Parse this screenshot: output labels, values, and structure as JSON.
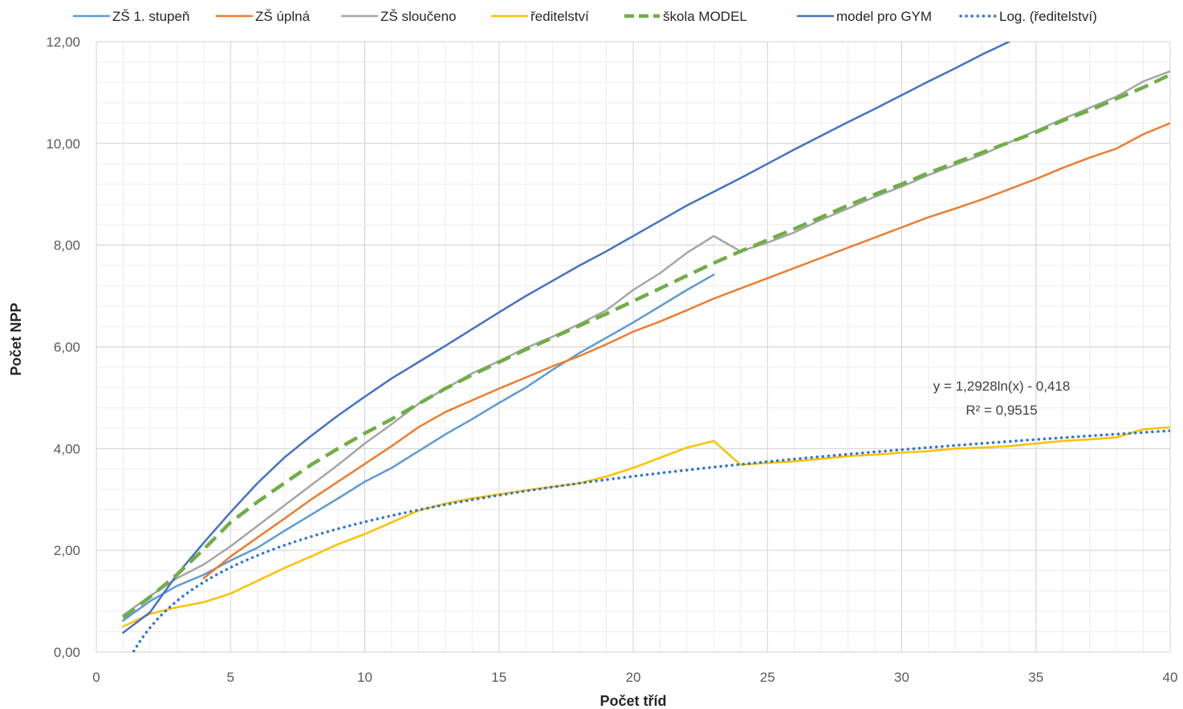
{
  "chart_data": {
    "type": "line",
    "xlabel": "Počet tříd",
    "ylabel": "Počet NPP",
    "xlim": [
      0,
      40
    ],
    "ylim": [
      0,
      12
    ],
    "x_ticks": [
      "0",
      "5",
      "10",
      "15",
      "20",
      "25",
      "30",
      "35",
      "40"
    ],
    "y_ticks": [
      "0,00",
      "2,00",
      "4,00",
      "6,00",
      "8,00",
      "10,00",
      "12,00"
    ],
    "grid": true,
    "legend_position": "top",
    "series": [
      {
        "name": "ZŠ 1. stupeň",
        "color": "#5B9BD5",
        "style": "solid",
        "x": [
          1,
          2,
          3,
          4,
          5,
          6,
          7,
          8,
          9,
          10,
          11,
          12,
          13,
          14,
          15,
          16,
          17,
          18,
          19,
          20,
          21,
          22,
          23
        ],
        "y": [
          0.62,
          1.0,
          1.3,
          1.52,
          1.8,
          2.05,
          2.38,
          2.7,
          3.02,
          3.35,
          3.62,
          3.95,
          4.28,
          4.58,
          4.9,
          5.2,
          5.55,
          5.88,
          6.18,
          6.48,
          6.8,
          7.12,
          7.42
        ]
      },
      {
        "name": "ZŠ úplná",
        "color": "#ED7D31",
        "style": "solid",
        "x": [
          4,
          5,
          6,
          7,
          8,
          9,
          10,
          11,
          12,
          13,
          14,
          15,
          16,
          17,
          18,
          19,
          20,
          21,
          22,
          23,
          24,
          25,
          26,
          27,
          28,
          29,
          30,
          31,
          32,
          33,
          34,
          35,
          36,
          37,
          38,
          39,
          40
        ],
        "y": [
          1.45,
          1.88,
          2.25,
          2.62,
          3.0,
          3.35,
          3.7,
          4.05,
          4.42,
          4.72,
          4.95,
          5.18,
          5.4,
          5.62,
          5.82,
          6.05,
          6.3,
          6.5,
          6.72,
          6.95,
          7.15,
          7.35,
          7.55,
          7.75,
          7.95,
          8.15,
          8.35,
          8.55,
          8.72,
          8.9,
          9.1,
          9.3,
          9.52,
          9.72,
          9.9,
          10.18,
          10.4
        ]
      },
      {
        "name": "ZŠ sloučeno",
        "color": "#A5A5A5",
        "style": "solid",
        "x": [
          1,
          2,
          3,
          4,
          5,
          6,
          7,
          8,
          9,
          10,
          11,
          12,
          13,
          14,
          15,
          16,
          17,
          18,
          19,
          20,
          21,
          22,
          23,
          24,
          25,
          26,
          27,
          28,
          29,
          30,
          31,
          32,
          33,
          34,
          35,
          36,
          37,
          38,
          39,
          40
        ],
        "y": [
          0.72,
          1.1,
          1.45,
          1.72,
          2.08,
          2.48,
          2.88,
          3.28,
          3.68,
          4.1,
          4.48,
          4.88,
          5.18,
          5.48,
          5.72,
          5.98,
          6.2,
          6.45,
          6.72,
          7.12,
          7.45,
          7.85,
          8.18,
          7.88,
          8.05,
          8.25,
          8.5,
          8.72,
          8.95,
          9.15,
          9.38,
          9.58,
          9.78,
          10.02,
          10.25,
          10.48,
          10.7,
          10.92,
          11.22,
          11.42
        ]
      },
      {
        "name": "ředitelství",
        "color": "#FFC000",
        "style": "solid",
        "x": [
          1,
          2,
          3,
          4,
          5,
          6,
          7,
          8,
          9,
          10,
          11,
          12,
          13,
          14,
          15,
          16,
          17,
          18,
          19,
          20,
          21,
          22,
          23,
          24,
          25,
          26,
          27,
          28,
          29,
          30,
          31,
          32,
          33,
          34,
          35,
          36,
          37,
          38,
          39,
          40
        ],
        "y": [
          0.5,
          0.75,
          0.88,
          0.98,
          1.15,
          1.4,
          1.65,
          1.88,
          2.12,
          2.32,
          2.55,
          2.78,
          2.92,
          3.02,
          3.1,
          3.18,
          3.25,
          3.32,
          3.45,
          3.62,
          3.82,
          4.02,
          4.15,
          3.68,
          3.72,
          3.75,
          3.8,
          3.85,
          3.88,
          3.92,
          3.95,
          4.0,
          4.02,
          4.05,
          4.1,
          4.15,
          4.18,
          4.22,
          4.38,
          4.42
        ]
      },
      {
        "name": "škola MODEL",
        "color": "#70AD47",
        "style": "dashed",
        "x": [
          1,
          2,
          3,
          4,
          5,
          6,
          7,
          8,
          9,
          10,
          11,
          12,
          13,
          14,
          15,
          16,
          17,
          18,
          19,
          20,
          21,
          22,
          23,
          24,
          25,
          26,
          27,
          28,
          29,
          30,
          31,
          32,
          33,
          34,
          35,
          36,
          37,
          38,
          39,
          40
        ],
        "y": [
          0.68,
          1.08,
          1.52,
          2.02,
          2.55,
          2.95,
          3.32,
          3.68,
          4.0,
          4.3,
          4.58,
          4.88,
          5.18,
          5.45,
          5.7,
          5.95,
          6.18,
          6.42,
          6.65,
          6.9,
          7.15,
          7.4,
          7.65,
          7.88,
          8.1,
          8.32,
          8.55,
          8.78,
          9.0,
          9.2,
          9.42,
          9.62,
          9.82,
          10.02,
          10.22,
          10.45,
          10.65,
          10.88,
          11.1,
          11.35
        ]
      },
      {
        "name": "model pro GYM",
        "color": "#4472C4",
        "style": "solid",
        "x": [
          1,
          2,
          3,
          4,
          5,
          6,
          7,
          8,
          9,
          10,
          11,
          12,
          13,
          14,
          15,
          16,
          17,
          18,
          19,
          20,
          21,
          22,
          23,
          24,
          25,
          26,
          27,
          28,
          29,
          30,
          31,
          32,
          33,
          34
        ],
        "y": [
          0.38,
          0.78,
          1.52,
          2.15,
          2.75,
          3.32,
          3.82,
          4.25,
          4.65,
          5.02,
          5.38,
          5.7,
          6.02,
          6.35,
          6.68,
          7.0,
          7.3,
          7.6,
          7.88,
          8.18,
          8.48,
          8.78,
          9.05,
          9.32,
          9.6,
          9.88,
          10.15,
          10.42,
          10.68,
          10.95,
          11.22,
          11.48,
          11.75,
          12.0
        ]
      },
      {
        "name": "Log. (ředitelství)",
        "color": "#2E75D6",
        "style": "dotted",
        "type": "logarithmic trendline",
        "equation": "y = 1,2928ln(x) - 0,418",
        "r2": "R² = 0,9515",
        "a": 1.2928,
        "b": -0.418,
        "x_range": [
          1.4,
          40
        ]
      }
    ],
    "annotations": [
      "y = 1,2928ln(x) - 0,418",
      "R² = 0,9515"
    ]
  }
}
